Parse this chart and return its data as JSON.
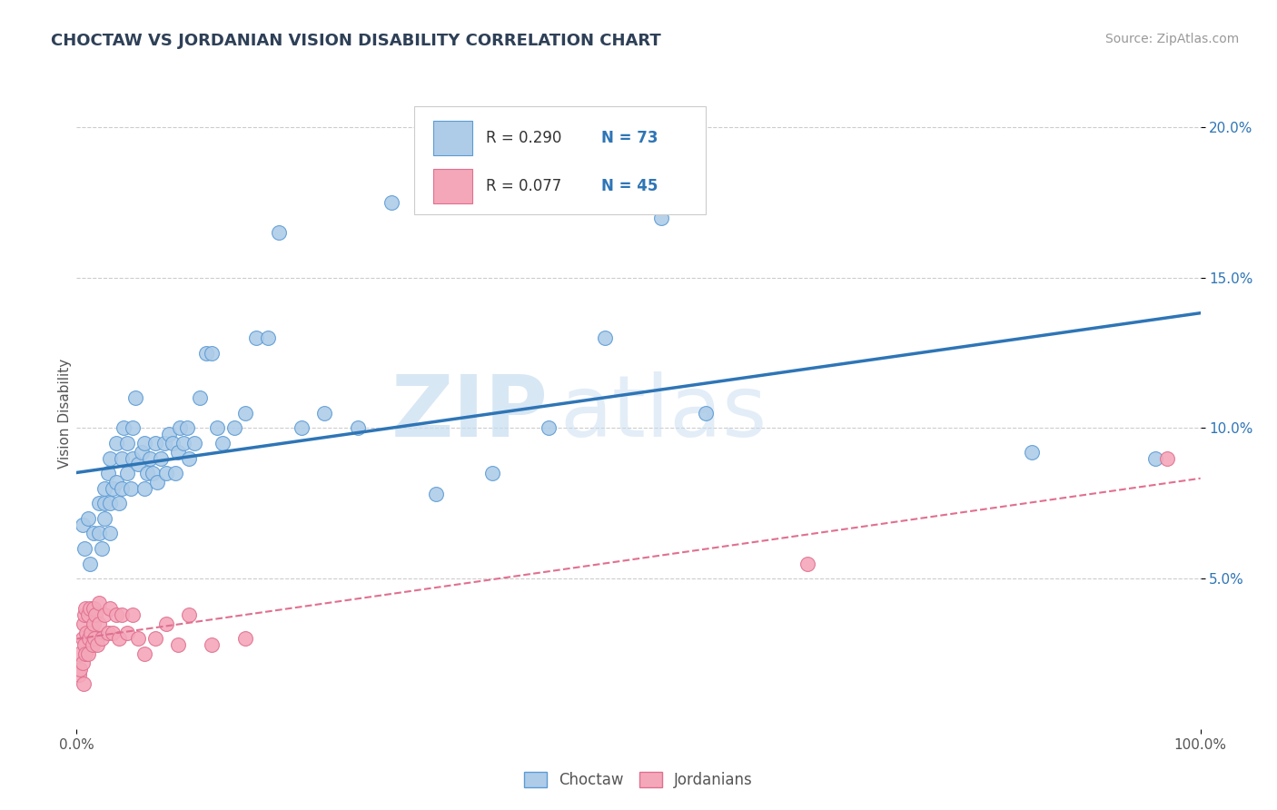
{
  "title": "CHOCTAW VS JORDANIAN VISION DISABILITY CORRELATION CHART",
  "source": "Source: ZipAtlas.com",
  "ylabel": "Vision Disability",
  "xlim": [
    0.0,
    1.0
  ],
  "ylim": [
    0.0,
    0.21
  ],
  "xticks": [
    0.0,
    1.0
  ],
  "xticklabels": [
    "0.0%",
    "100.0%"
  ],
  "yticks": [
    0.05,
    0.1,
    0.15,
    0.2
  ],
  "yticklabels": [
    "5.0%",
    "10.0%",
    "15.0%",
    "20.0%"
  ],
  "choctaw_color": "#aecce8",
  "choctaw_edge": "#5b9bd5",
  "jordanian_color": "#f4a7b9",
  "jordanian_edge": "#e07090",
  "choctaw_line_color": "#2e75b6",
  "jordanian_line_color": "#e07090",
  "legend_r1": "R = 0.290",
  "legend_n1": "N = 73",
  "legend_r2": "R = 0.077",
  "legend_n2": "N = 45",
  "legend_label1": "Choctaw",
  "legend_label2": "Jordanians",
  "rn_color": "#2e75b6",
  "watermark_zip": "ZIP",
  "watermark_atlas": "atlas",
  "background_color": "#ffffff",
  "grid_color": "#cccccc",
  "title_color": "#2e4057",
  "axis_color": "#555555",
  "choctaw_x": [
    0.005,
    0.007,
    0.01,
    0.012,
    0.015,
    0.015,
    0.018,
    0.02,
    0.02,
    0.022,
    0.025,
    0.025,
    0.025,
    0.028,
    0.03,
    0.03,
    0.03,
    0.032,
    0.035,
    0.035,
    0.038,
    0.04,
    0.04,
    0.042,
    0.045,
    0.045,
    0.048,
    0.05,
    0.05,
    0.052,
    0.055,
    0.058,
    0.06,
    0.06,
    0.063,
    0.065,
    0.068,
    0.07,
    0.072,
    0.075,
    0.078,
    0.08,
    0.082,
    0.085,
    0.088,
    0.09,
    0.092,
    0.095,
    0.098,
    0.1,
    0.105,
    0.11,
    0.115,
    0.12,
    0.125,
    0.13,
    0.14,
    0.15,
    0.16,
    0.17,
    0.18,
    0.2,
    0.22,
    0.25,
    0.28,
    0.32,
    0.37,
    0.42,
    0.47,
    0.52,
    0.56,
    0.85,
    0.96
  ],
  "choctaw_y": [
    0.068,
    0.06,
    0.07,
    0.055,
    0.065,
    0.04,
    0.03,
    0.065,
    0.075,
    0.06,
    0.075,
    0.07,
    0.08,
    0.085,
    0.075,
    0.065,
    0.09,
    0.08,
    0.082,
    0.095,
    0.075,
    0.08,
    0.09,
    0.1,
    0.085,
    0.095,
    0.08,
    0.09,
    0.1,
    0.11,
    0.088,
    0.092,
    0.095,
    0.08,
    0.085,
    0.09,
    0.085,
    0.095,
    0.082,
    0.09,
    0.095,
    0.085,
    0.098,
    0.095,
    0.085,
    0.092,
    0.1,
    0.095,
    0.1,
    0.09,
    0.095,
    0.11,
    0.125,
    0.125,
    0.1,
    0.095,
    0.1,
    0.105,
    0.13,
    0.13,
    0.165,
    0.1,
    0.105,
    0.1,
    0.175,
    0.078,
    0.085,
    0.1,
    0.13,
    0.17,
    0.105,
    0.092,
    0.09
  ],
  "jordanian_x": [
    0.002,
    0.002,
    0.003,
    0.005,
    0.005,
    0.006,
    0.006,
    0.007,
    0.007,
    0.008,
    0.008,
    0.009,
    0.01,
    0.01,
    0.011,
    0.012,
    0.013,
    0.014,
    0.015,
    0.015,
    0.016,
    0.017,
    0.018,
    0.02,
    0.02,
    0.022,
    0.025,
    0.028,
    0.03,
    0.032,
    0.035,
    0.038,
    0.04,
    0.045,
    0.05,
    0.055,
    0.06,
    0.07,
    0.08,
    0.09,
    0.1,
    0.12,
    0.15,
    0.65,
    0.97
  ],
  "jordanian_y": [
    0.025,
    0.018,
    0.02,
    0.022,
    0.03,
    0.015,
    0.035,
    0.028,
    0.038,
    0.025,
    0.04,
    0.032,
    0.025,
    0.038,
    0.03,
    0.04,
    0.032,
    0.028,
    0.035,
    0.04,
    0.03,
    0.038,
    0.028,
    0.035,
    0.042,
    0.03,
    0.038,
    0.032,
    0.04,
    0.032,
    0.038,
    0.03,
    0.038,
    0.032,
    0.038,
    0.03,
    0.025,
    0.03,
    0.035,
    0.028,
    0.038,
    0.028,
    0.03,
    0.055,
    0.09
  ]
}
